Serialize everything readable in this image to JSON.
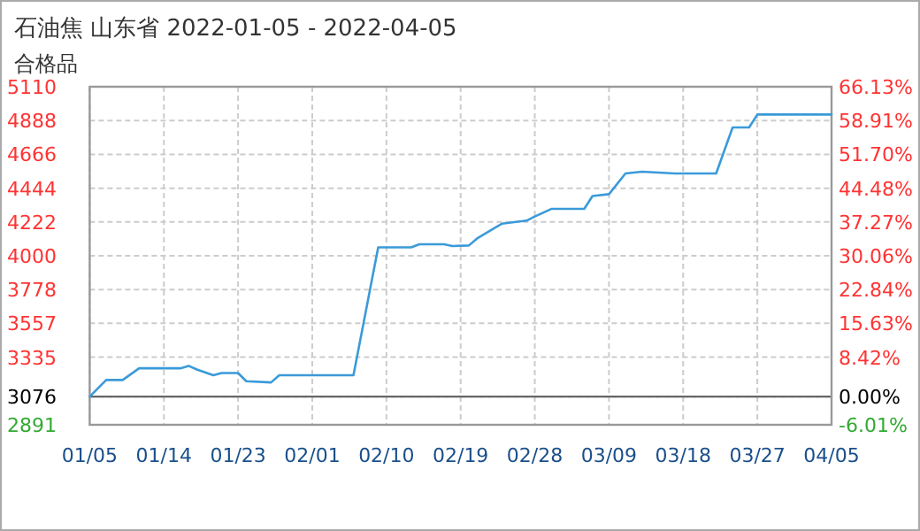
{
  "chart_data": {
    "type": "line",
    "title": "石油焦 山东省 2022-01-05 - 2022-04-05",
    "subtitle": "合格品",
    "x": [
      "2022-01-05",
      "2022-01-07",
      "2022-01-09",
      "2022-01-11",
      "2022-01-16",
      "2022-01-17",
      "2022-01-18",
      "2022-01-20",
      "2022-01-21",
      "2022-01-23",
      "2022-01-24",
      "2022-01-27",
      "2022-01-28",
      "2022-02-06",
      "2022-02-09",
      "2022-02-13",
      "2022-02-14",
      "2022-02-17",
      "2022-02-18",
      "2022-02-20",
      "2022-02-21",
      "2022-02-24",
      "2022-02-27",
      "2022-02-28",
      "2022-03-02",
      "2022-03-06",
      "2022-03-07",
      "2022-03-09",
      "2022-03-11",
      "2022-03-13",
      "2022-03-17",
      "2022-03-22",
      "2022-03-24",
      "2022-03-26",
      "2022-03-27",
      "2022-04-05"
    ],
    "series": [
      {
        "color": "#3b9ad9",
        "values": [
          3076,
          3185,
          3185,
          3262,
          3262,
          3278,
          3254,
          3216,
          3231,
          3231,
          3177,
          3169,
          3216,
          3216,
          4056,
          4056,
          4076,
          4076,
          4064,
          4068,
          4114,
          4211,
          4231,
          4258,
          4308,
          4308,
          4393,
          4405,
          4541,
          4552,
          4541,
          4541,
          4843,
          4843,
          4928,
          4928
        ]
      }
    ],
    "xlim": [
      "2022-01-05",
      "2022-04-05"
    ],
    "xticks": [
      {
        "value": "2022-01-05",
        "label": "01/05"
      },
      {
        "value": "2022-01-14",
        "label": "01/14"
      },
      {
        "value": "2022-01-23",
        "label": "01/23"
      },
      {
        "value": "2022-02-01",
        "label": "02/01"
      },
      {
        "value": "2022-02-10",
        "label": "02/10"
      },
      {
        "value": "2022-02-19",
        "label": "02/19"
      },
      {
        "value": "2022-02-28",
        "label": "02/28"
      },
      {
        "value": "2022-03-09",
        "label": "03/09"
      },
      {
        "value": "2022-03-18",
        "label": "03/18"
      },
      {
        "value": "2022-03-27",
        "label": "03/27"
      },
      {
        "value": "2022-04-05",
        "label": "04/05"
      }
    ],
    "ylim": [
      2891,
      5110
    ],
    "yticks": [
      2891,
      3076,
      3335,
      3557,
      3778,
      4000,
      4222,
      4444,
      4666,
      4888,
      5110
    ],
    "y2lim": [
      -6.01,
      66.13
    ],
    "y2ticks": [
      {
        "value": -6.01,
        "label": "-6.01%"
      },
      {
        "value": 0,
        "label": "0.00%"
      },
      {
        "value": 8.42,
        "label": "8.42%"
      },
      {
        "value": 15.63,
        "label": "15.63%"
      },
      {
        "value": 22.84,
        "label": "22.84%"
      },
      {
        "value": 30.06,
        "label": "30.06%"
      },
      {
        "value": 37.27,
        "label": "37.27%"
      },
      {
        "value": 44.48,
        "label": "44.48%"
      },
      {
        "value": 51.7,
        "label": "51.70%"
      },
      {
        "value": 58.91,
        "label": "58.91%"
      },
      {
        "value": 66.13,
        "label": "66.13%"
      }
    ],
    "ref_lines": [
      {
        "axis": "y",
        "value": 3076,
        "color": "#666666"
      }
    ],
    "grid": true,
    "marker": "none",
    "line_style": "solid"
  }
}
